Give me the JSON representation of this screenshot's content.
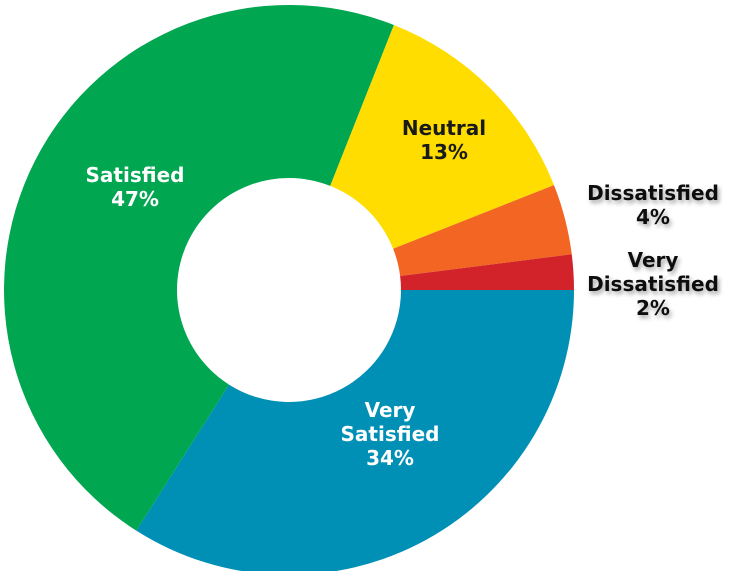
{
  "chart_data": {
    "type": "pie",
    "donut": true,
    "title": "",
    "slices": [
      {
        "label_lines": [
          "Very",
          "Satisfied"
        ],
        "value_text": "34%",
        "value": 34,
        "color": "#008FB5"
      },
      {
        "label_lines": [
          "Satisfied"
        ],
        "value_text": "47%",
        "value": 47,
        "color": "#00A650"
      },
      {
        "label_lines": [
          "Neutral"
        ],
        "value_text": "13%",
        "value": 13,
        "color": "#FFDD00"
      },
      {
        "label_lines": [
          "Dissatisfied"
        ],
        "value_text": "4%",
        "value": 4,
        "color": "#F26522"
      },
      {
        "label_lines": [
          "Very",
          "Dissatisfied"
        ],
        "value_text": "2%",
        "value": 2,
        "color": "#D2232A"
      }
    ]
  }
}
